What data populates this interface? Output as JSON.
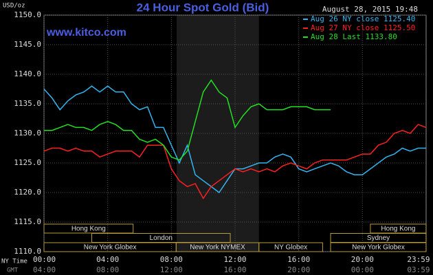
{
  "chart_data": {
    "type": "line",
    "title": "24 Hour Spot Gold (Bid)",
    "website": "www.kitco.com",
    "timestamp": "August 28, 2015 19:48",
    "y_label": "USD/oz",
    "x_label": "NY Time",
    "x2_label": "GMT",
    "xlim": [
      0,
      24
    ],
    "xticks": [
      {
        "value": 0,
        "label": "00:00"
      },
      {
        "value": 4,
        "label": "04:00"
      },
      {
        "value": 8,
        "label": "08:00"
      },
      {
        "value": 12,
        "label": "12:00"
      },
      {
        "value": 16,
        "label": "16:00"
      },
      {
        "value": 20,
        "label": "20:00"
      },
      {
        "value": 23.98,
        "label": "23:59"
      }
    ],
    "gmt_labels": [
      "04:00",
      "08:00",
      "12:00",
      "16:00",
      "20:00",
      "00:00",
      "03:59"
    ],
    "ylim": [
      1110,
      1150
    ],
    "yticks": [
      {
        "value": 1110,
        "label": "1110.0"
      },
      {
        "value": 1115,
        "label": "1115.0"
      },
      {
        "value": 1120,
        "label": "1120.0"
      },
      {
        "value": 1125,
        "label": "1125.0"
      },
      {
        "value": 1130,
        "label": "1130.0"
      },
      {
        "value": 1135,
        "label": "1135.0"
      },
      {
        "value": 1140,
        "label": "1140.0"
      },
      {
        "value": 1145,
        "label": "1145.0"
      },
      {
        "value": 1150,
        "label": "1150.0"
      }
    ],
    "grid": true,
    "highlight": [
      8.33,
      13.5
    ],
    "x": [
      0,
      0.5,
      1,
      1.5,
      2,
      2.5,
      3,
      3.5,
      4,
      4.5,
      5,
      5.5,
      6,
      6.5,
      7,
      7.5,
      8,
      8.5,
      9,
      9.5,
      10,
      10.5,
      11,
      11.5,
      12,
      12.5,
      13,
      13.5,
      14,
      14.5,
      15,
      15.5,
      16,
      16.5,
      17,
      17.5,
      18,
      18.5,
      19,
      19.5,
      20,
      20.5,
      21,
      21.5,
      22,
      22.5,
      23,
      23.5,
      24
    ],
    "series": [
      {
        "name": "Aug 26 NY close 1125.40",
        "color": "#33b5f0",
        "values": [
          1137.5,
          1136,
          1134,
          1135.5,
          1136.5,
          1137,
          1138,
          1137,
          1138,
          1137,
          1137,
          1135,
          1134,
          1134.5,
          1131,
          1131,
          1128,
          1125,
          1128,
          1123,
          1122,
          1121,
          1120,
          1122,
          1124,
          1124,
          1124.5,
          1125,
          1125,
          1126,
          1126.5,
          1126,
          1124,
          1123.5,
          1124,
          1124.5,
          1125,
          1124.5,
          1123.5,
          1123,
          1123,
          1124,
          1125,
          1126,
          1126.5,
          1127.5,
          1127,
          1127.5,
          1127.5
        ]
      },
      {
        "name": "Aug 27 NY close 1125.50",
        "color": "#ff2020",
        "values": [
          1127,
          1127.5,
          1127.5,
          1127,
          1127.5,
          1127,
          1127,
          1126,
          1126.5,
          1127,
          1127,
          1127,
          1126,
          1128,
          1128,
          1128,
          1124,
          1122,
          1121,
          1121.5,
          1119,
          1121,
          1122,
          1123,
          1124,
          1123.5,
          1124,
          1123.5,
          1124,
          1123.5,
          1124.5,
          1125,
          1124.5,
          1124,
          1125,
          1125.5,
          1125.5,
          1125.5,
          1125.5,
          1126,
          1126.5,
          1126.5,
          1128,
          1128.5,
          1130,
          1130.5,
          1130,
          1131.5,
          1131
        ]
      },
      {
        "name": "Aug 28 Last 1133.80",
        "color": "#22e022",
        "values": [
          1130.5,
          1130.5,
          1131,
          1131.5,
          1131,
          1131,
          1130.5,
          1131.5,
          1132,
          1131.5,
          1130.5,
          1130.5,
          1129,
          1128.5,
          1129,
          1128,
          1126,
          1125.5,
          1127,
          1132,
          1137,
          1139,
          1137,
          1136,
          1131,
          1133,
          1134.5,
          1135,
          1134,
          1134,
          1134,
          1134.5,
          1134.5,
          1134.5,
          1134,
          1134,
          1134,
          null,
          null,
          null,
          null,
          null,
          null,
          null,
          null,
          null,
          null,
          null,
          null
        ]
      }
    ],
    "session_rows": [
      [
        {
          "label": "Hong Kong",
          "start": 0,
          "end": 5.6
        },
        {
          "label": "Hong Kong",
          "start": 20.5,
          "end": 24
        }
      ],
      [
        {
          "label": "London",
          "start": 3,
          "end": 11.7
        },
        {
          "label": "Sydney",
          "start": 18,
          "end": 24
        }
      ],
      [
        {
          "label": "New York Globex",
          "start": 0,
          "end": 8.3
        },
        {
          "label": "New York NYMEX",
          "start": 8.3,
          "end": 13.5
        },
        {
          "label": "NY Globex",
          "start": 13.5,
          "end": 17.5
        },
        {
          "label": "New York Globex",
          "start": 18,
          "end": 24
        }
      ]
    ]
  }
}
